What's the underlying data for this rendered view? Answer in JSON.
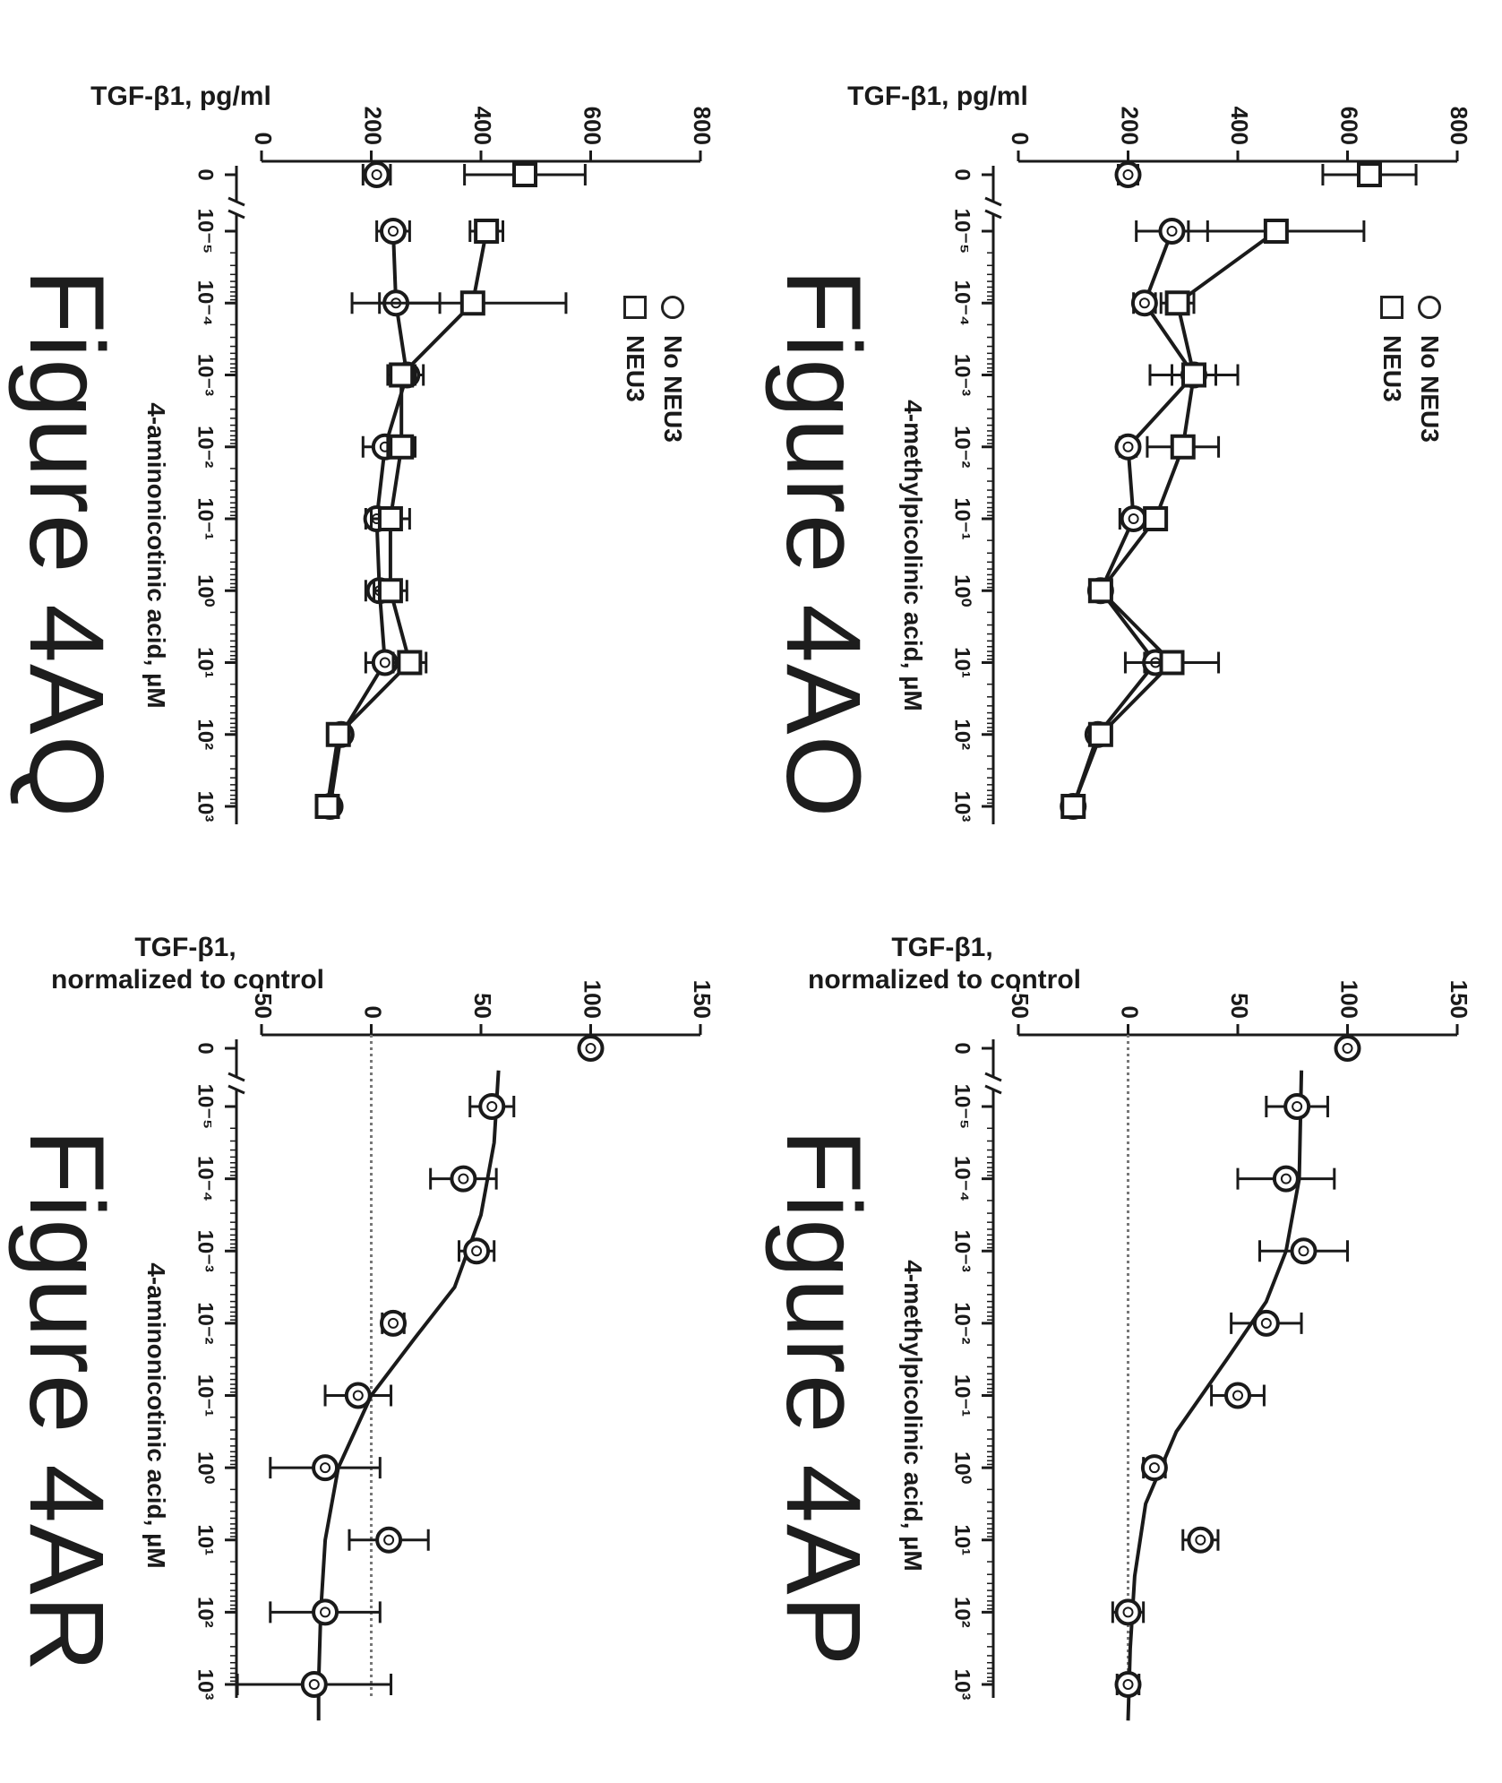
{
  "figures": {
    "4AO": "Figure 4AO",
    "4AP": "Figure 4AP",
    "4AQ": "Figure 4AQ",
    "4AR": "Figure 4AR"
  },
  "colors": {
    "ink": "#1a1a1a",
    "baseline_dots": "#777777",
    "hatch": "#555555"
  },
  "chart_data": [
    {
      "id": "4AO",
      "type": "line",
      "y_scale": "linear",
      "x_scale": "log with zero control",
      "ylabel": "TGF-β1, pg/ml",
      "xlabel": "4-methylpicolinic acid, µM",
      "ylim": [
        0,
        800
      ],
      "yticks": [
        0,
        200,
        400,
        600,
        800
      ],
      "x_categories": [
        "0",
        "10⁻⁵",
        "10⁻⁴",
        "10⁻³",
        "10⁻²",
        "10⁻¹",
        "10⁰",
        "10¹",
        "10²",
        "10³"
      ],
      "legend": [
        "No NEU3",
        "NEU3"
      ],
      "legend_placement": "top-left",
      "series": [
        {
          "name": "No NEU3",
          "marker": "circle",
          "points": [
            [
              0,
              200,
              18
            ],
            [
              -5,
              280,
              65
            ],
            [
              -4,
              230,
              20
            ],
            [
              -3,
              320,
              80
            ],
            [
              -2,
              200,
              15
            ],
            [
              -1,
              210,
              25
            ],
            [
              0,
              150,
              15
            ],
            [
              1,
              250,
              20
            ],
            [
              2,
              145,
              15
            ],
            [
              3,
              100,
              10
            ]
          ]
        },
        {
          "name": "NEU3",
          "marker": "square",
          "points": [
            [
              0,
              640,
              85
            ],
            [
              -5,
              470,
              160
            ],
            [
              -4,
              290,
              30
            ],
            [
              -3,
              320,
              40
            ],
            [
              -2,
              300,
              65
            ],
            [
              -1,
              250,
              20
            ],
            [
              0,
              150,
              20
            ],
            [
              1,
              280,
              85
            ],
            [
              2,
              150,
              15
            ],
            [
              3,
              100,
              10
            ]
          ]
        }
      ]
    },
    {
      "id": "4AP",
      "type": "line",
      "y_scale": "linear",
      "x_scale": "log with zero control",
      "ylabel": "TGF-β1, normalized to control",
      "xlabel": "4-methylpicolinic acid, µM",
      "ylim": [
        -50,
        150
      ],
      "yticks": [
        -50,
        0,
        50,
        100,
        150
      ],
      "x_categories": [
        "0",
        "10⁻⁵",
        "10⁻⁴",
        "10⁻³",
        "10⁻²",
        "10⁻¹",
        "10⁰",
        "10¹",
        "10²",
        "10³"
      ],
      "baseline": 0,
      "control": {
        "value": 100
      },
      "points": [
        [
          -5,
          77,
          14
        ],
        [
          -4,
          72,
          22
        ],
        [
          -3,
          80,
          20
        ],
        [
          -2,
          63,
          16
        ],
        [
          -1,
          50,
          12
        ],
        [
          0,
          12,
          5
        ],
        [
          1,
          33,
          8
        ],
        [
          2,
          0,
          7
        ],
        [
          3,
          0,
          5
        ]
      ],
      "fit": [
        [
          -5.5,
          79
        ],
        [
          -4,
          78
        ],
        [
          -3,
          72
        ],
        [
          -2.3,
          63
        ],
        [
          -1.5,
          45
        ],
        [
          -0.5,
          22
        ],
        [
          0.5,
          8
        ],
        [
          1.5,
          3
        ],
        [
          2.5,
          1
        ],
        [
          3.5,
          0
        ]
      ]
    },
    {
      "id": "4AQ",
      "type": "line",
      "y_scale": "linear",
      "x_scale": "log with zero control",
      "ylabel": "TGF-β1, pg/ml",
      "xlabel": "4-aminonicotinic acid, µM",
      "ylim": [
        0,
        800
      ],
      "yticks": [
        0,
        200,
        400,
        600,
        800
      ],
      "x_categories": [
        "0",
        "10⁻⁵",
        "10⁻⁴",
        "10⁻³",
        "10⁻²",
        "10⁻¹",
        "10⁰",
        "10¹",
        "10²",
        "10³"
      ],
      "legend": [
        "No NEU3",
        "NEU3"
      ],
      "legend_placement": "top-left",
      "series": [
        {
          "name": "No NEU3",
          "marker": "circle",
          "points": [
            [
              0,
              210,
              25
            ],
            [
              -5,
              240,
              30
            ],
            [
              -4,
              245,
              80
            ],
            [
              -3,
              265,
              30
            ],
            [
              -2,
              225,
              40
            ],
            [
              -1,
              210,
              20
            ],
            [
              0,
              215,
              25
            ],
            [
              1,
              225,
              35
            ],
            [
              2,
              145,
              15
            ],
            [
              3,
              125,
              10
            ]
          ]
        },
        {
          "name": "NEU3",
          "marker": "square",
          "points": [
            [
              0,
              480,
              110
            ],
            [
              -5,
              410,
              30
            ],
            [
              -4,
              385,
              170
            ],
            [
              -3,
              255,
              25
            ],
            [
              -2,
              255,
              25
            ],
            [
              -1,
              235,
              35
            ],
            [
              0,
              235,
              30
            ],
            [
              1,
              270,
              30
            ],
            [
              2,
              140,
              20
            ],
            [
              3,
              120,
              15
            ]
          ]
        }
      ]
    },
    {
      "id": "4AR",
      "type": "line",
      "y_scale": "linear",
      "x_scale": "log with zero control",
      "ylabel": "TGF-β1, normalized to control",
      "xlabel": "4-aminonicotinic acid, µM",
      "ylim": [
        -50,
        150
      ],
      "yticks": [
        -50,
        0,
        50,
        100,
        150
      ],
      "x_categories": [
        "0",
        "10⁻⁵",
        "10⁻⁴",
        "10⁻³",
        "10⁻²",
        "10⁻¹",
        "10⁰",
        "10¹",
        "10²",
        "10³"
      ],
      "baseline": 0,
      "control": {
        "value": 100
      },
      "points": [
        [
          -5,
          55,
          10
        ],
        [
          -4,
          42,
          15
        ],
        [
          -3,
          48,
          8
        ],
        [
          -2,
          10,
          5
        ],
        [
          -1,
          -6,
          15
        ],
        [
          0,
          -21,
          25
        ],
        [
          1,
          8,
          18
        ],
        [
          2,
          -21,
          25
        ],
        [
          3,
          -26,
          35
        ]
      ],
      "fit": [
        [
          -5.5,
          58
        ],
        [
          -4.5,
          56
        ],
        [
          -3.5,
          50
        ],
        [
          -2.5,
          38
        ],
        [
          -1.8,
          20
        ],
        [
          -1,
          0
        ],
        [
          0,
          -15
        ],
        [
          1,
          -21
        ],
        [
          2,
          -23
        ],
        [
          3,
          -24
        ],
        [
          3.5,
          -24
        ]
      ]
    }
  ]
}
